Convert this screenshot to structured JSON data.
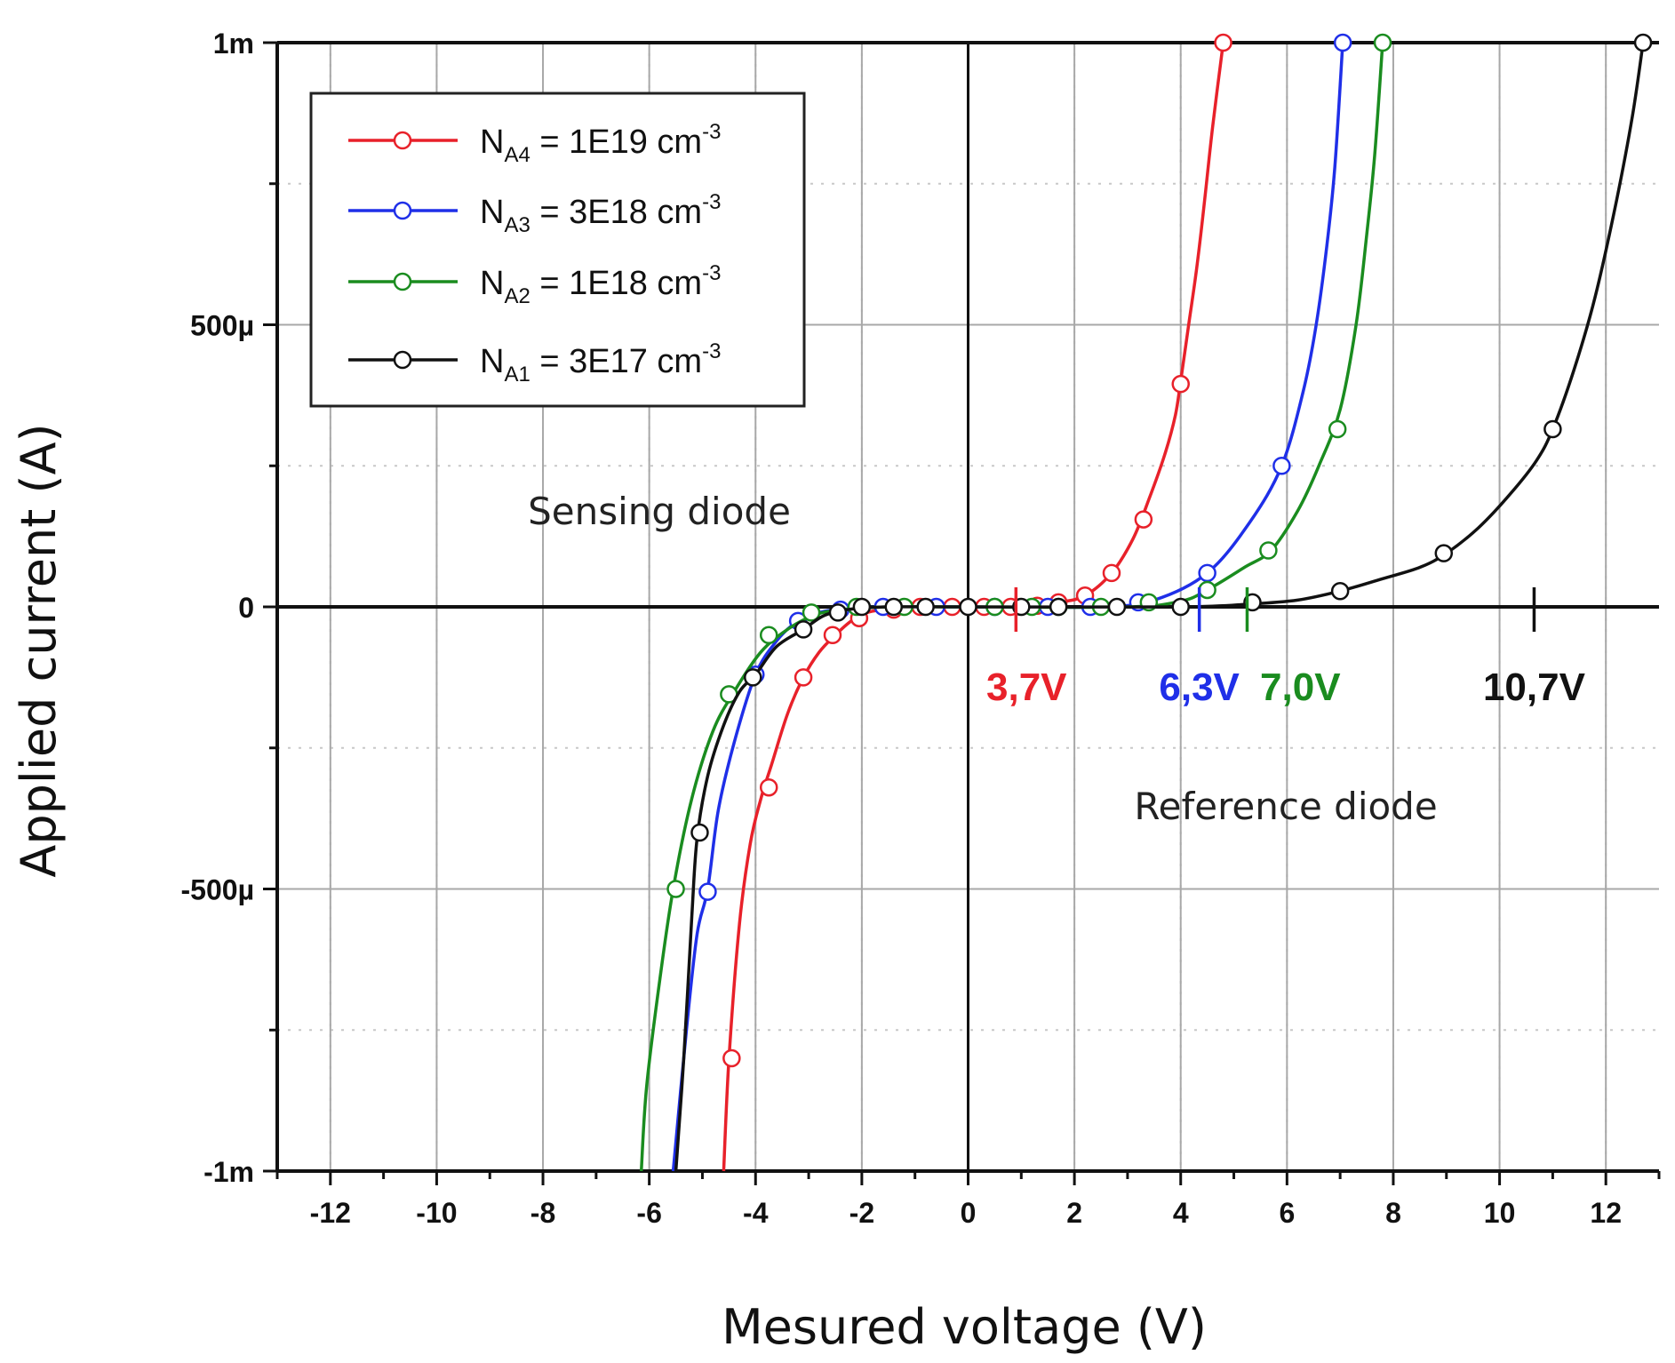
{
  "chart_data": {
    "type": "line",
    "title": "",
    "xlabel": "Mesured voltage (V)",
    "ylabel": "Applied current (A)",
    "xlim": [
      -13,
      13
    ],
    "ylim": [
      -0.001,
      0.001
    ],
    "x_ticks": [
      -12,
      -10,
      -8,
      -6,
      -4,
      -2,
      0,
      2,
      4,
      6,
      8,
      10,
      12
    ],
    "x_tick_labels": [
      "-12",
      "-10",
      "-8",
      "-6",
      "-4",
      "-2",
      "0",
      "2",
      "4",
      "6",
      "8",
      "10",
      "12"
    ],
    "y_ticks": [
      0.001,
      0.0005,
      0,
      -0.0005,
      -0.001
    ],
    "y_tick_labels": [
      "1m",
      "500µ",
      "0",
      "-500µ",
      "-1m"
    ],
    "grid": true,
    "legend_position": "top-left",
    "series": [
      {
        "name": "N_A4 = 1E19 cm-3",
        "label_main": "N",
        "label_sub": "A4",
        "label_rest": " = 1E19 cm",
        "label_sup": "-3",
        "color": "#e8212a",
        "curve": [
          [
            -4.6,
            -0.001
          ],
          [
            -4.5,
            -0.0008
          ],
          [
            -4.3,
            -0.00056
          ],
          [
            -4.1,
            -0.00042
          ],
          [
            -3.9,
            -0.00034
          ],
          [
            -3.7,
            -0.00028
          ],
          [
            -3.4,
            -0.00019
          ],
          [
            -3.1,
            -0.000125
          ],
          [
            -2.8,
            -8e-05
          ],
          [
            -2.5,
            -5e-05
          ],
          [
            -2.2,
            -2.5e-05
          ],
          [
            -1.9,
            -1e-05
          ],
          [
            -1.5,
            -4e-06
          ],
          [
            -1,
            -1e-06
          ],
          [
            0,
            0
          ],
          [
            1,
            1e-06
          ],
          [
            1.7,
            8e-06
          ],
          [
            2.2,
            2e-05
          ],
          [
            2.7,
            6e-05
          ],
          [
            3.1,
            0.00012
          ],
          [
            3.4,
            0.00019
          ],
          [
            3.7,
            0.00027
          ],
          [
            3.9,
            0.00034
          ],
          [
            4.0,
            0.0004
          ],
          [
            4.15,
            0.0005
          ],
          [
            4.3,
            0.0006
          ],
          [
            4.45,
            0.00072
          ],
          [
            4.6,
            0.00085
          ],
          [
            4.8,
            0.001
          ]
        ],
        "markers": [
          [
            -4.45,
            -0.0008
          ],
          [
            -3.75,
            -0.00032
          ],
          [
            -3.1,
            -0.000125
          ],
          [
            -2.55,
            -5e-05
          ],
          [
            -2.05,
            -2e-05
          ],
          [
            -1.4,
            -5e-06
          ],
          [
            -0.9,
            0
          ],
          [
            -0.3,
            0
          ],
          [
            0.3,
            0
          ],
          [
            0.8,
            0
          ],
          [
            1.3,
            2e-06
          ],
          [
            1.7,
            8e-06
          ],
          [
            2.2,
            2e-05
          ],
          [
            2.7,
            6e-05
          ],
          [
            3.3,
            0.000155
          ],
          [
            4.0,
            0.000395
          ],
          [
            4.8,
            0.001
          ]
        ]
      },
      {
        "name": "N_A3 = 3E18 cm-3",
        "label_main": "N",
        "label_sub": "A3",
        "label_rest": " = 3E18 cm",
        "label_sup": "-3",
        "color": "#1f2fe8",
        "curve": [
          [
            -5.55,
            -0.001
          ],
          [
            -5.3,
            -0.00075
          ],
          [
            -5.1,
            -0.00058
          ],
          [
            -4.9,
            -0.0005
          ],
          [
            -4.7,
            -0.00036
          ],
          [
            -4.4,
            -0.00024
          ],
          [
            -4.0,
            -0.00012
          ],
          [
            -3.6,
            -6e-05
          ],
          [
            -3.2,
            -2.5e-05
          ],
          [
            -2.8,
            -1e-05
          ],
          [
            -2.3,
            -3e-06
          ],
          [
            -1.5,
            0
          ],
          [
            0,
            0
          ],
          [
            2.5,
            0
          ],
          [
            3.5,
            1.2e-05
          ],
          [
            4.5,
            6e-05
          ],
          [
            5.3,
            0.00015
          ],
          [
            5.9,
            0.00025
          ],
          [
            6.3,
            0.00038
          ],
          [
            6.55,
            0.0005
          ],
          [
            6.75,
            0.00064
          ],
          [
            6.9,
            0.00078
          ],
          [
            7.05,
            0.001
          ]
        ],
        "markers": [
          [
            -4.9,
            -0.000505
          ],
          [
            -4.0,
            -0.00012
          ],
          [
            -3.2,
            -2.5e-05
          ],
          [
            -2.4,
            -5e-06
          ],
          [
            -1.6,
            0
          ],
          [
            -0.6,
            0
          ],
          [
            0.5,
            0
          ],
          [
            1.5,
            0
          ],
          [
            2.3,
            0
          ],
          [
            3.2,
            8e-06
          ],
          [
            4.5,
            6e-05
          ],
          [
            5.9,
            0.00025
          ],
          [
            7.05,
            0.001
          ]
        ]
      },
      {
        "name": "N_A2 = 1E18 cm-3",
        "label_main": "N",
        "label_sub": "A2",
        "label_rest": " = 1E18 cm",
        "label_sup": "-3",
        "color": "#1a8c1f",
        "curve": [
          [
            -6.15,
            -0.001
          ],
          [
            -6.05,
            -0.00085
          ],
          [
            -5.8,
            -0.00066
          ],
          [
            -5.55,
            -0.0005
          ],
          [
            -5.2,
            -0.00034
          ],
          [
            -4.8,
            -0.00022
          ],
          [
            -4.4,
            -0.00015
          ],
          [
            -3.9,
            -8e-05
          ],
          [
            -3.4,
            -4e-05
          ],
          [
            -2.9,
            -1.5e-05
          ],
          [
            -2.4,
            -5e-06
          ],
          [
            -1.5,
            0
          ],
          [
            0,
            0
          ],
          [
            3,
            0
          ],
          [
            4,
            1e-05
          ],
          [
            4.5,
            3e-05
          ],
          [
            5.2,
            7e-05
          ],
          [
            5.7,
            0.0001
          ],
          [
            6.2,
            0.00017
          ],
          [
            6.6,
            0.00025
          ],
          [
            7.0,
            0.00035
          ],
          [
            7.3,
            0.0005
          ],
          [
            7.5,
            0.00066
          ],
          [
            7.65,
            0.0008
          ],
          [
            7.8,
            0.001
          ]
        ],
        "markers": [
          [
            -5.5,
            -0.0005
          ],
          [
            -4.5,
            -0.000155
          ],
          [
            -3.75,
            -5e-05
          ],
          [
            -2.95,
            -1e-05
          ],
          [
            -2.1,
            0
          ],
          [
            -1.2,
            0
          ],
          [
            0.5,
            0
          ],
          [
            1.2,
            0
          ],
          [
            1.7,
            0
          ],
          [
            2.5,
            0
          ],
          [
            3.4,
            8e-06
          ],
          [
            4.5,
            3e-05
          ],
          [
            5.65,
            0.0001
          ],
          [
            6.95,
            0.000315
          ],
          [
            7.8,
            0.001
          ]
        ]
      },
      {
        "name": "N_A1 = 3E17 cm-3",
        "label_main": "N",
        "label_sub": "A1",
        "label_rest": " = 3E17 cm",
        "label_sup": "-3",
        "color": "#111111",
        "curve": [
          [
            -5.5,
            -0.001
          ],
          [
            -5.35,
            -0.0008
          ],
          [
            -5.2,
            -0.00055
          ],
          [
            -5.1,
            -0.00041
          ],
          [
            -4.9,
            -0.0003
          ],
          [
            -4.6,
            -0.00021
          ],
          [
            -4.3,
            -0.00015
          ],
          [
            -4.0,
            -0.00012
          ],
          [
            -3.6,
            -7e-05
          ],
          [
            -3.1,
            -4e-05
          ],
          [
            -2.7,
            -1.5e-05
          ],
          [
            -2.2,
            -4e-06
          ],
          [
            -1.5,
            0
          ],
          [
            0,
            0
          ],
          [
            4,
            0
          ],
          [
            5.3,
            5e-06
          ],
          [
            6.2,
            1.2e-05
          ],
          [
            7.0,
            2.8e-05
          ],
          [
            7.8,
            5e-05
          ],
          [
            8.5,
            7e-05
          ],
          [
            9.0,
            9.5e-05
          ],
          [
            9.6,
            0.00014
          ],
          [
            10.2,
            0.0002
          ],
          [
            10.7,
            0.00026
          ],
          [
            11.0,
            0.000315
          ],
          [
            11.4,
            0.00042
          ],
          [
            11.8,
            0.00055
          ],
          [
            12.2,
            0.00072
          ],
          [
            12.5,
            0.00087
          ],
          [
            12.7,
            0.001
          ]
        ],
        "markers": [
          [
            -5.05,
            -0.0004
          ],
          [
            -4.05,
            -0.000125
          ],
          [
            -3.1,
            -4e-05
          ],
          [
            -2.45,
            -1e-05
          ],
          [
            -2.0,
            0
          ],
          [
            -1.4,
            0
          ],
          [
            -0.8,
            0
          ],
          [
            0,
            0
          ],
          [
            1.0,
            0
          ],
          [
            1.7,
            0
          ],
          [
            2.8,
            0
          ],
          [
            4.0,
            0
          ],
          [
            5.35,
            8e-06
          ],
          [
            7.0,
            2.8e-05
          ],
          [
            8.95,
            9.5e-05
          ],
          [
            11.0,
            0.000315
          ],
          [
            12.7,
            0.001
          ]
        ]
      }
    ],
    "annotations": [
      {
        "text": "Sensing diode",
        "x": -6.0,
        "y": 0.000165
      },
      {
        "text": "Reference diode",
        "x": 6.0,
        "y": -0.000355
      }
    ],
    "voltage_markers": [
      {
        "label": "3,7V",
        "x": 0.9,
        "color": "#e8212a",
        "label_x": 1.1
      },
      {
        "label": "6,3V",
        "x": 4.35,
        "color": "#1f2fe8",
        "label_x": 4.35
      },
      {
        "label": "7,0V",
        "x": 5.25,
        "color": "#1a8c1f",
        "label_x": 6.25
      },
      {
        "label": "10,7V",
        "x": 10.65,
        "color": "#111111",
        "label_x": 10.65
      }
    ]
  }
}
